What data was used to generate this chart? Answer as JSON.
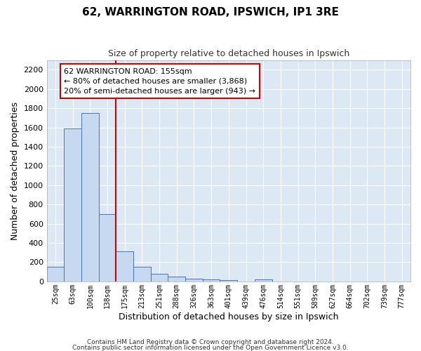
{
  "title": "62, WARRINGTON ROAD, IPSWICH, IP1 3RE",
  "subtitle": "Size of property relative to detached houses in Ipswich",
  "xlabel": "Distribution of detached houses by size in Ipswich",
  "ylabel": "Number of detached properties",
  "footer_line1": "Contains HM Land Registry data © Crown copyright and database right 2024.",
  "footer_line2": "Contains public sector information licensed under the Open Government Licence v3.0.",
  "bar_labels": [
    "25sqm",
    "63sqm",
    "100sqm",
    "138sqm",
    "175sqm",
    "213sqm",
    "251sqm",
    "288sqm",
    "326sqm",
    "363sqm",
    "401sqm",
    "439sqm",
    "476sqm",
    "514sqm",
    "551sqm",
    "589sqm",
    "627sqm",
    "664sqm",
    "702sqm",
    "739sqm",
    "777sqm"
  ],
  "bar_values": [
    155,
    1590,
    1750,
    700,
    310,
    155,
    80,
    50,
    25,
    18,
    15,
    0,
    20,
    0,
    0,
    0,
    0,
    0,
    0,
    0,
    0
  ],
  "bar_color": "#c6d9f1",
  "bar_edge_color": "#4472c4",
  "red_line_color": "#cc0000",
  "annotation_title": "62 WARRINGTON ROAD: 155sqm",
  "annotation_line1": "← 80% of detached houses are smaller (3,868)",
  "annotation_line2": "20% of semi-detached houses are larger (943) →",
  "annotation_box_edge": "#cc0000",
  "annotation_box_fill": "white",
  "ylim": [
    0,
    2300
  ],
  "yticks": [
    0,
    200,
    400,
    600,
    800,
    1000,
    1200,
    1400,
    1600,
    1800,
    2000,
    2200
  ],
  "fig_bg_color": "#ffffff",
  "plot_bg_color": "#dde8f5",
  "grid_color": "#ffffff",
  "figsize": [
    6.0,
    5.0
  ],
  "dpi": 100
}
